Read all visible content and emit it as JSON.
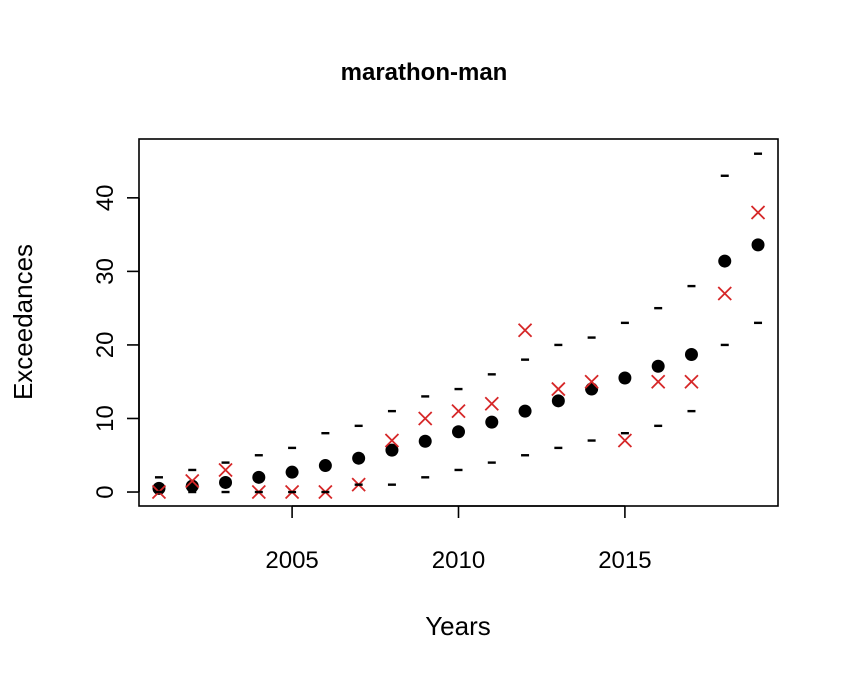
{
  "chart_data": {
    "type": "scatter",
    "title": "marathon-man",
    "xlabel": "Years",
    "ylabel": "Exceedances",
    "xlim": [
      2000.4,
      2019.6
    ],
    "ylim": [
      -1.9,
      48
    ],
    "x_ticks": [
      2005,
      2010,
      2015
    ],
    "y_ticks": [
      0,
      10,
      20,
      30,
      40
    ],
    "grid": false,
    "legend": "none",
    "x": [
      2001,
      2002,
      2003,
      2004,
      2005,
      2006,
      2007,
      2008,
      2009,
      2010,
      2011,
      2012,
      2013,
      2014,
      2015,
      2016,
      2017,
      2018,
      2019
    ],
    "series": [
      {
        "marker": "filled-circle",
        "color": "#000000",
        "values": [
          0.5,
          0.8,
          1.3,
          2.0,
          2.7,
          3.6,
          4.6,
          5.7,
          6.9,
          8.2,
          9.5,
          11.0,
          12.4,
          14.0,
          15.5,
          17.1,
          18.7,
          31.4,
          33.6
        ]
      },
      {
        "marker": "cross",
        "color": "#d62728",
        "values": [
          0,
          1.5,
          3,
          0,
          0,
          0,
          1,
          7,
          10,
          11,
          12,
          22,
          14,
          15,
          7,
          15,
          15,
          27,
          38
        ]
      },
      {
        "marker": "dash",
        "color": "#000000",
        "values": [
          2,
          3,
          4,
          5,
          6,
          8,
          9,
          11,
          13,
          14,
          16,
          18,
          20,
          21,
          23,
          25,
          28,
          43,
          46
        ]
      },
      {
        "marker": "dash",
        "color": "#000000",
        "values": [
          0,
          0,
          0,
          0,
          0,
          0,
          1,
          1,
          2,
          3,
          4,
          5,
          6,
          7,
          8,
          9,
          11,
          20,
          23
        ]
      }
    ]
  }
}
